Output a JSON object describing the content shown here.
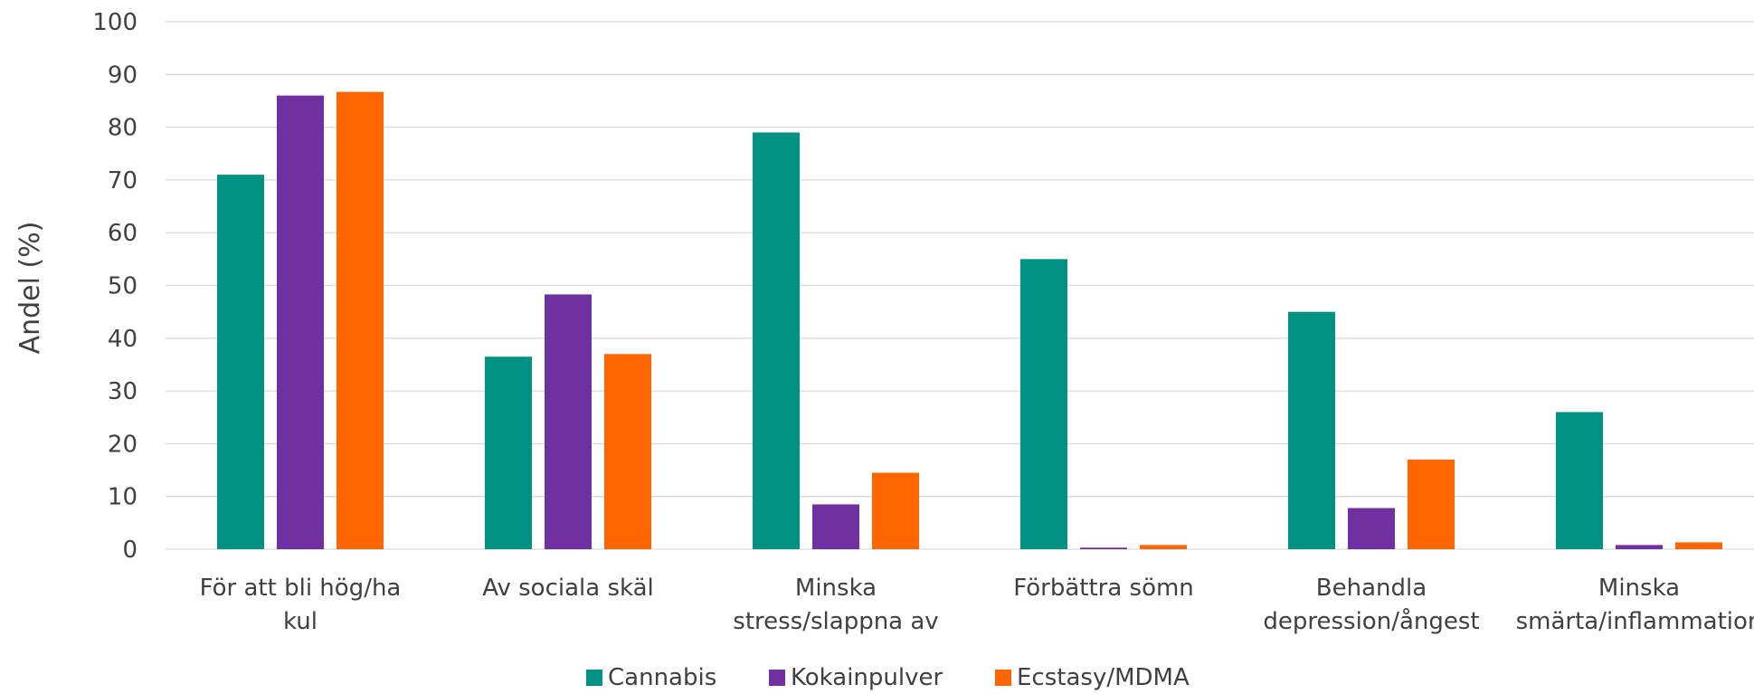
{
  "chart_data": {
    "type": "bar",
    "title": "",
    "xlabel": "",
    "ylabel": "Andel (%)",
    "ylim": [
      0,
      100
    ],
    "yticks": [
      0,
      10,
      20,
      30,
      40,
      50,
      60,
      70,
      80,
      90,
      100
    ],
    "grid": true,
    "legend_position": "bottom",
    "categories": [
      [
        "För att bli hög/ha",
        "kul"
      ],
      [
        "Av sociala skäl"
      ],
      [
        "Minska",
        "stress/slappna av"
      ],
      [
        "Förbättra sömn"
      ],
      [
        "Behandla",
        "depression/ångest"
      ],
      [
        "Minska",
        "smärta/inflammation"
      ]
    ],
    "series": [
      {
        "name": "Cannabis",
        "color": "#009384",
        "values": [
          71,
          36.5,
          79,
          55,
          45,
          26
        ]
      },
      {
        "name": "Kokainpulver",
        "color": "#7030a0",
        "values": [
          86,
          48.3,
          8.5,
          0.3,
          7.8,
          0.8
        ]
      },
      {
        "name": "Ecstasy/MDMA",
        "color": "#ff6600",
        "values": [
          86.7,
          37,
          14.5,
          0.8,
          17,
          1.3
        ]
      }
    ]
  }
}
